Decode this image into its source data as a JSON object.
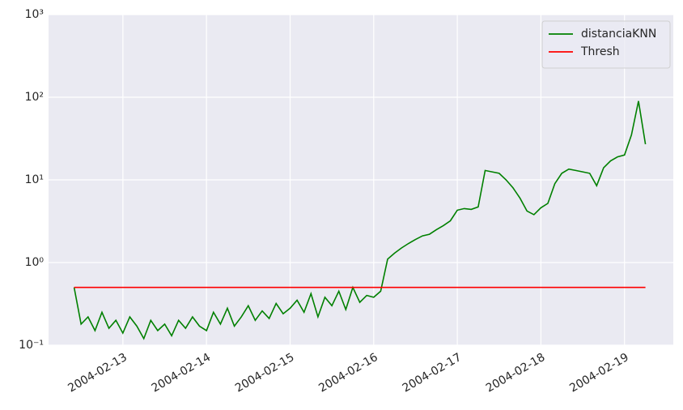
{
  "chart_data": {
    "type": "line",
    "x": [
      "2004-02-12 10:00",
      "2004-02-12 12:00",
      "2004-02-12 14:00",
      "2004-02-12 16:00",
      "2004-02-12 18:00",
      "2004-02-12 20:00",
      "2004-02-12 22:00",
      "2004-02-13 00:00",
      "2004-02-13 02:00",
      "2004-02-13 04:00",
      "2004-02-13 06:00",
      "2004-02-13 08:00",
      "2004-02-13 10:00",
      "2004-02-13 12:00",
      "2004-02-13 14:00",
      "2004-02-13 16:00",
      "2004-02-13 18:00",
      "2004-02-13 20:00",
      "2004-02-13 22:00",
      "2004-02-14 00:00",
      "2004-02-14 02:00",
      "2004-02-14 04:00",
      "2004-02-14 06:00",
      "2004-02-14 08:00",
      "2004-02-14 10:00",
      "2004-02-14 12:00",
      "2004-02-14 14:00",
      "2004-02-14 16:00",
      "2004-02-14 18:00",
      "2004-02-14 20:00",
      "2004-02-14 22:00",
      "2004-02-15 00:00",
      "2004-02-15 02:00",
      "2004-02-15 04:00",
      "2004-02-15 06:00",
      "2004-02-15 08:00",
      "2004-02-15 10:00",
      "2004-02-15 12:00",
      "2004-02-15 14:00",
      "2004-02-15 16:00",
      "2004-02-15 18:00",
      "2004-02-15 20:00",
      "2004-02-15 22:00",
      "2004-02-16 00:00",
      "2004-02-16 02:00",
      "2004-02-16 04:00",
      "2004-02-16 06:00",
      "2004-02-16 08:00",
      "2004-02-16 10:00",
      "2004-02-16 12:00",
      "2004-02-16 14:00",
      "2004-02-16 16:00",
      "2004-02-16 18:00",
      "2004-02-16 20:00",
      "2004-02-16 22:00",
      "2004-02-17 00:00",
      "2004-02-17 02:00",
      "2004-02-17 04:00",
      "2004-02-17 06:00",
      "2004-02-17 08:00",
      "2004-02-17 10:00",
      "2004-02-17 12:00",
      "2004-02-17 14:00",
      "2004-02-17 16:00",
      "2004-02-17 18:00",
      "2004-02-17 20:00",
      "2004-02-17 22:00",
      "2004-02-18 00:00",
      "2004-02-18 02:00",
      "2004-02-18 04:00",
      "2004-02-18 06:00",
      "2004-02-18 08:00",
      "2004-02-18 10:00",
      "2004-02-18 12:00",
      "2004-02-18 14:00",
      "2004-02-18 16:00",
      "2004-02-18 18:00",
      "2004-02-18 20:00",
      "2004-02-18 22:00",
      "2004-02-19 00:00",
      "2004-02-19 02:00",
      "2004-02-19 04:00",
      "2004-02-19 06:00"
    ],
    "series": [
      {
        "name": "distanciaKNN",
        "color": "#008000",
        "values": [
          0.5,
          0.18,
          0.22,
          0.15,
          0.25,
          0.16,
          0.2,
          0.14,
          0.22,
          0.17,
          0.12,
          0.2,
          0.15,
          0.18,
          0.13,
          0.2,
          0.16,
          0.22,
          0.17,
          0.15,
          0.25,
          0.18,
          0.28,
          0.17,
          0.22,
          0.3,
          0.2,
          0.26,
          0.21,
          0.32,
          0.24,
          0.28,
          0.35,
          0.25,
          0.42,
          0.22,
          0.38,
          0.3,
          0.45,
          0.27,
          0.5,
          0.33,
          0.4,
          0.38,
          0.45,
          1.1,
          1.3,
          1.5,
          1.7,
          1.9,
          2.1,
          2.2,
          2.5,
          2.8,
          3.2,
          4.3,
          4.5,
          4.4,
          4.7,
          13,
          12.5,
          12,
          10,
          8,
          6,
          4.2,
          3.8,
          4.6,
          5.2,
          9,
          12,
          13.5,
          13,
          12.5,
          12,
          8.5,
          14,
          17,
          19,
          20,
          35,
          90,
          27
        ]
      },
      {
        "name": "Thresh",
        "color": "#ff0000",
        "values": [
          0.5,
          0.5,
          0.5,
          0.5,
          0.5,
          0.5,
          0.5,
          0.5,
          0.5,
          0.5,
          0.5,
          0.5,
          0.5,
          0.5,
          0.5,
          0.5,
          0.5,
          0.5,
          0.5,
          0.5,
          0.5,
          0.5,
          0.5,
          0.5,
          0.5,
          0.5,
          0.5,
          0.5,
          0.5,
          0.5,
          0.5,
          0.5,
          0.5,
          0.5,
          0.5,
          0.5,
          0.5,
          0.5,
          0.5,
          0.5,
          0.5,
          0.5,
          0.5,
          0.5,
          0.5,
          0.5,
          0.5,
          0.5,
          0.5,
          0.5,
          0.5,
          0.5,
          0.5,
          0.5,
          0.5,
          0.5,
          0.5,
          0.5,
          0.5,
          0.5,
          0.5,
          0.5,
          0.5,
          0.5,
          0.5,
          0.5,
          0.5,
          0.5,
          0.5,
          0.5,
          0.5,
          0.5,
          0.5,
          0.5,
          0.5,
          0.5,
          0.5,
          0.5,
          0.5,
          0.5,
          0.5,
          0.5,
          0.5
        ]
      }
    ],
    "xlim": [
      "2004-02-12 02:40",
      "2004-02-19 14:00"
    ],
    "xticks": [
      "2004-02-13",
      "2004-02-14",
      "2004-02-15",
      "2004-02-16",
      "2004-02-17",
      "2004-02-18",
      "2004-02-19"
    ],
    "ylim": [
      0.1,
      1000
    ],
    "yticks": [
      {
        "value": 0.1,
        "label": "10⁻¹"
      },
      {
        "value": 1,
        "label": "10⁰"
      },
      {
        "value": 10,
        "label": "10¹"
      },
      {
        "value": 100,
        "label": "10²"
      },
      {
        "value": 1000,
        "label": "10³"
      }
    ],
    "log_y": true,
    "grid": true,
    "legend": "upper right"
  }
}
